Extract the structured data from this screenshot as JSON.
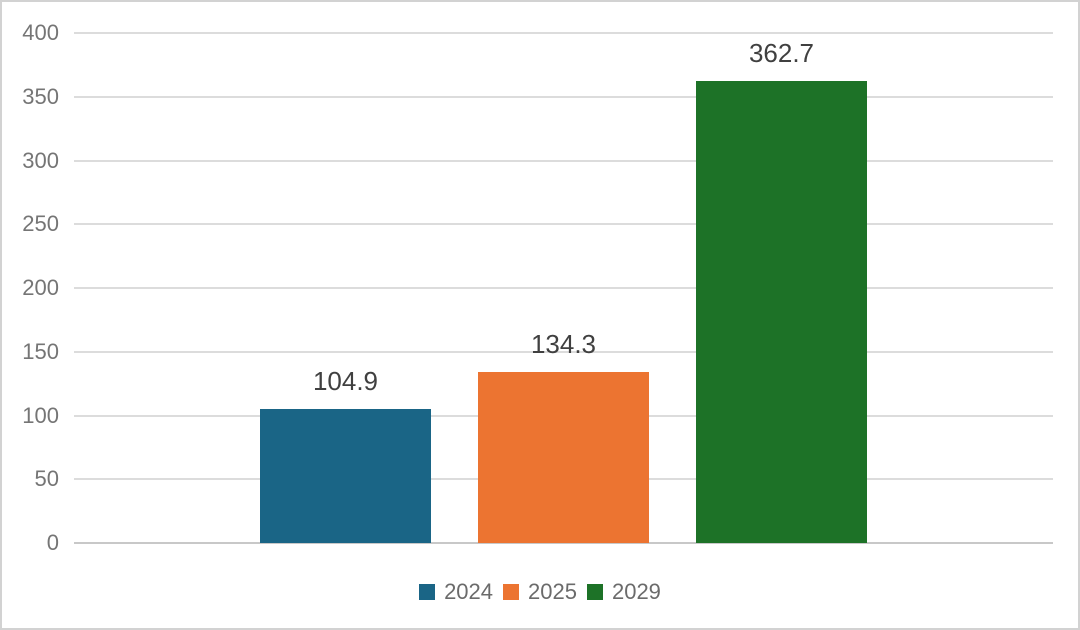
{
  "chart_data": {
    "type": "bar",
    "title": "",
    "xlabel": "",
    "ylabel": "",
    "categories": [
      ""
    ],
    "series": [
      {
        "name": "2024",
        "value": 104.9,
        "label": "104.9",
        "color": "#1a6586"
      },
      {
        "name": "2025",
        "value": 134.3,
        "label": "134.3",
        "color": "#ec7431"
      },
      {
        "name": "2029",
        "value": 362.7,
        "label": "362.7",
        "color": "#1d7227"
      }
    ],
    "ylim": [
      0,
      400
    ],
    "yticks": [
      400,
      350,
      300,
      250,
      200,
      150,
      100,
      50,
      0
    ],
    "grid": true,
    "legend_position": "bottom"
  },
  "colors": {
    "background": "#ffffff",
    "canvas_border": "#d2d2d2",
    "gridline": "#dcdcdc",
    "axis_line": "#c8c8c8",
    "tick_text": "#757575",
    "value_label_text": "#404040",
    "legend_text": "#6b6b6b"
  }
}
